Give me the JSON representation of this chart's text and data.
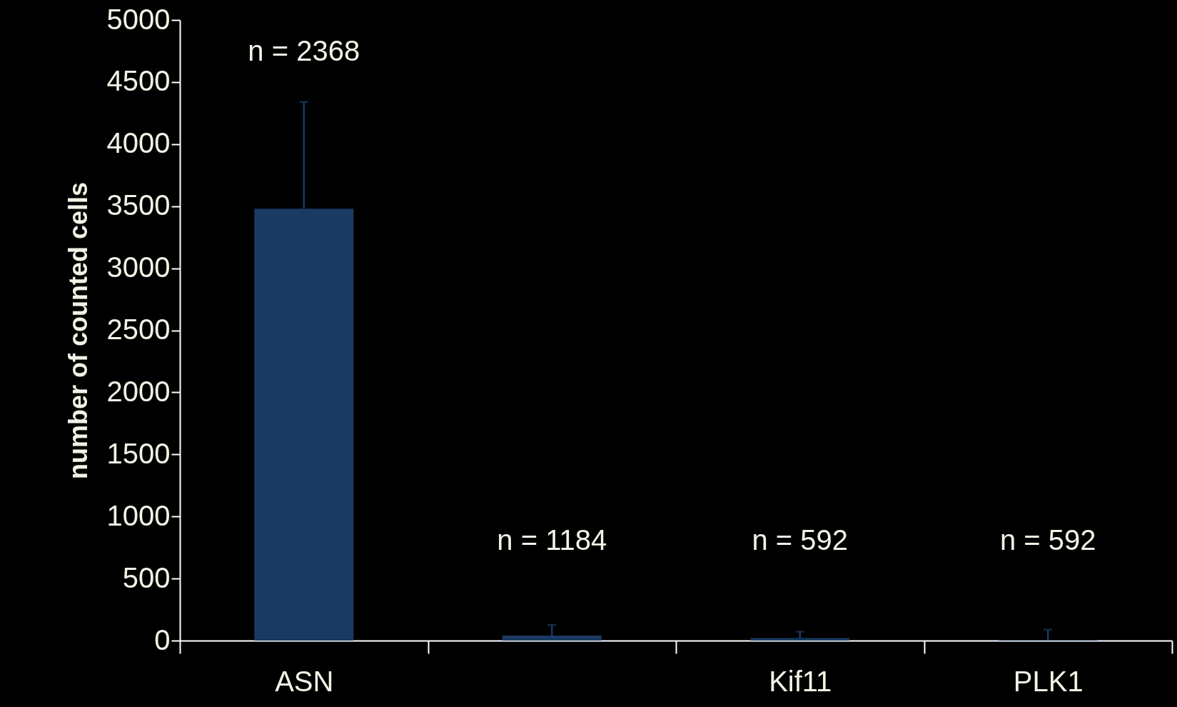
{
  "chart_data": {
    "type": "bar",
    "ylabel": "number of counted cells",
    "categories": [
      "ASN",
      null,
      "Kif11",
      "PLK1"
    ],
    "values": [
      3480,
      40,
      20,
      6
    ],
    "errors": [
      860,
      85,
      52,
      82
    ],
    "color": "#1a3a63",
    "ylim": [
      0,
      5000
    ],
    "yticks": [
      0,
      500,
      1000,
      1500,
      2000,
      2500,
      3000,
      3500,
      4000,
      4500,
      5000
    ],
    "grid": false,
    "annotations": [
      "n = 2368",
      "n = 1184",
      "n = 592",
      "n = 592"
    ]
  }
}
